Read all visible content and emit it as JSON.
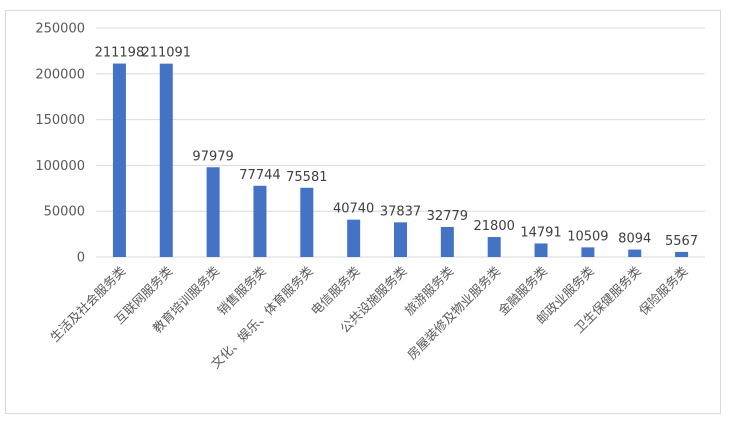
{
  "chart_data": {
    "type": "bar",
    "title": "",
    "xlabel": "",
    "ylabel": "",
    "ylim": [
      0,
      250000
    ],
    "yticks": [
      0,
      50000,
      100000,
      150000,
      200000,
      250000
    ],
    "grid": true,
    "legend": "none",
    "color": "#4472c4",
    "categories": [
      "生活及社会服务类",
      "互联网服务类",
      "教育培训服务类",
      "销售服务类",
      "文化、娱乐、体育服务类",
      "电信服务类",
      "公共设施服务类",
      "旅游服务类",
      "房屋装修及物业服务类",
      "金融服务类",
      "邮政业服务类",
      "卫生保健服务类",
      "保险服务类"
    ],
    "values": [
      211198,
      211091,
      97979,
      77744,
      75581,
      40740,
      37837,
      32779,
      21800,
      14791,
      10509,
      8094,
      5567
    ]
  }
}
